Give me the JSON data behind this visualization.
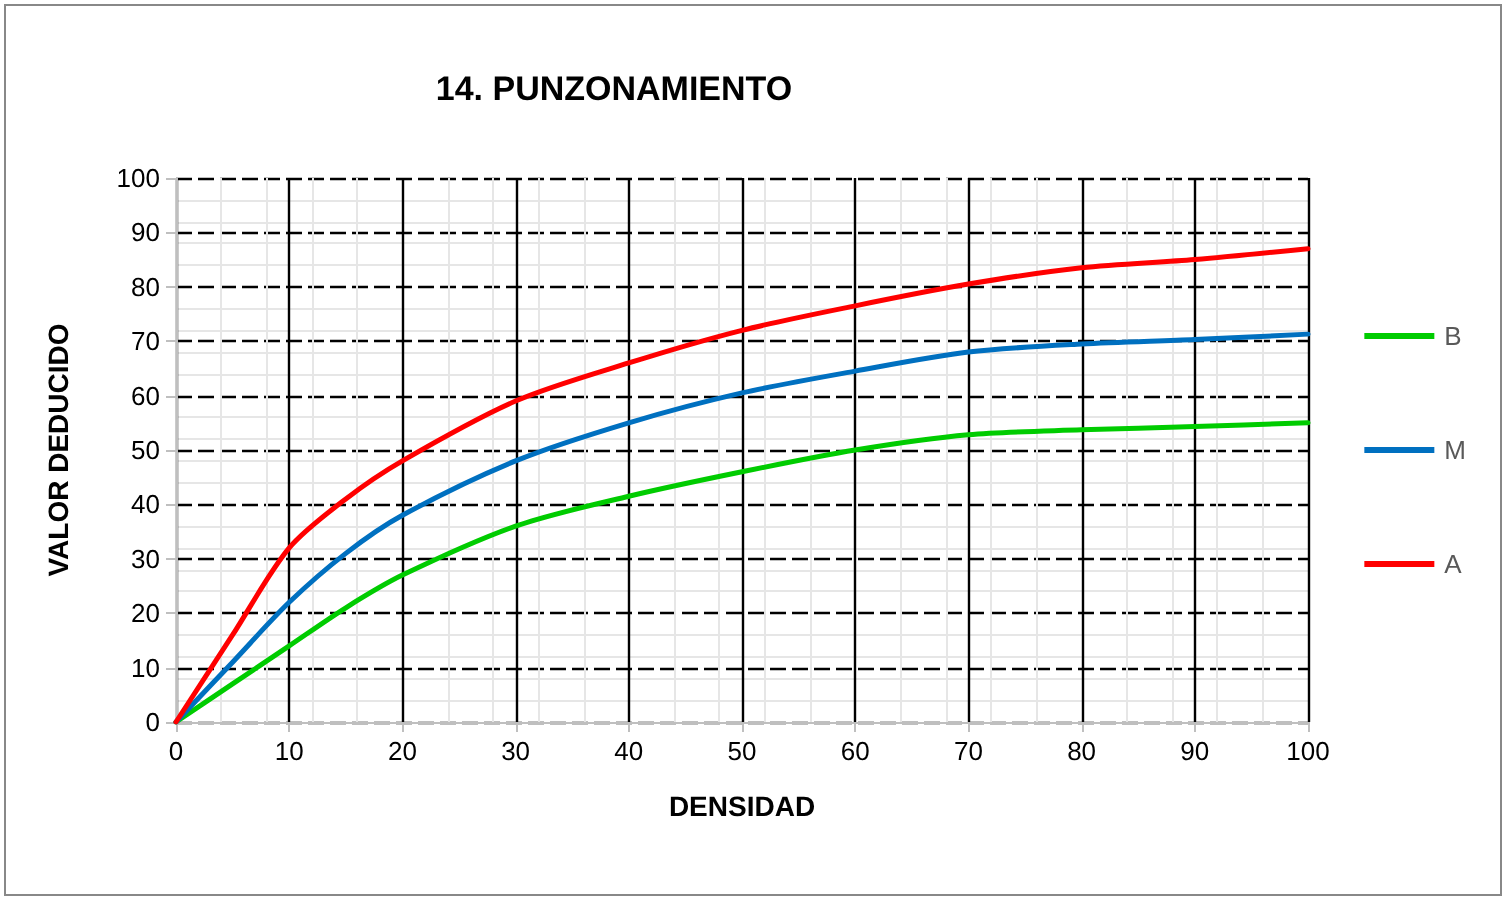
{
  "chart_data": {
    "type": "line",
    "title": "14. PUNZONAMIENTO",
    "xlabel": "DENSIDAD",
    "ylabel": "VALOR DEDUCIDO",
    "x": [
      0,
      5,
      10,
      15,
      20,
      30,
      40,
      50,
      60,
      70,
      80,
      90,
      100
    ],
    "series": [
      {
        "name": "B",
        "color": "#00cc00",
        "values": [
          0,
          7,
          14,
          21,
          27,
          36,
          41.5,
          46,
          50,
          52.8,
          53.7,
          54.3,
          55
        ]
      },
      {
        "name": "M",
        "color": "#0070c0",
        "values": [
          0,
          11,
          22,
          31,
          38,
          48,
          55,
          60.5,
          64.5,
          68,
          69.5,
          70.3,
          71.3
        ]
      },
      {
        "name": "A",
        "color": "#ff0000",
        "values": [
          0,
          16,
          32,
          41,
          48,
          59,
          66,
          72,
          76.5,
          80.5,
          83.5,
          85,
          87
        ]
      }
    ],
    "xlim": [
      0,
      100
    ],
    "xticks": [
      0,
      10,
      20,
      30,
      40,
      50,
      60,
      70,
      80,
      90,
      100
    ],
    "ylim": [
      0,
      100
    ],
    "yticks": [
      0,
      10,
      20,
      30,
      40,
      50,
      60,
      70,
      80,
      90,
      100
    ],
    "grid": true,
    "legend": "right",
    "marker": "none",
    "line_style": "solid"
  }
}
